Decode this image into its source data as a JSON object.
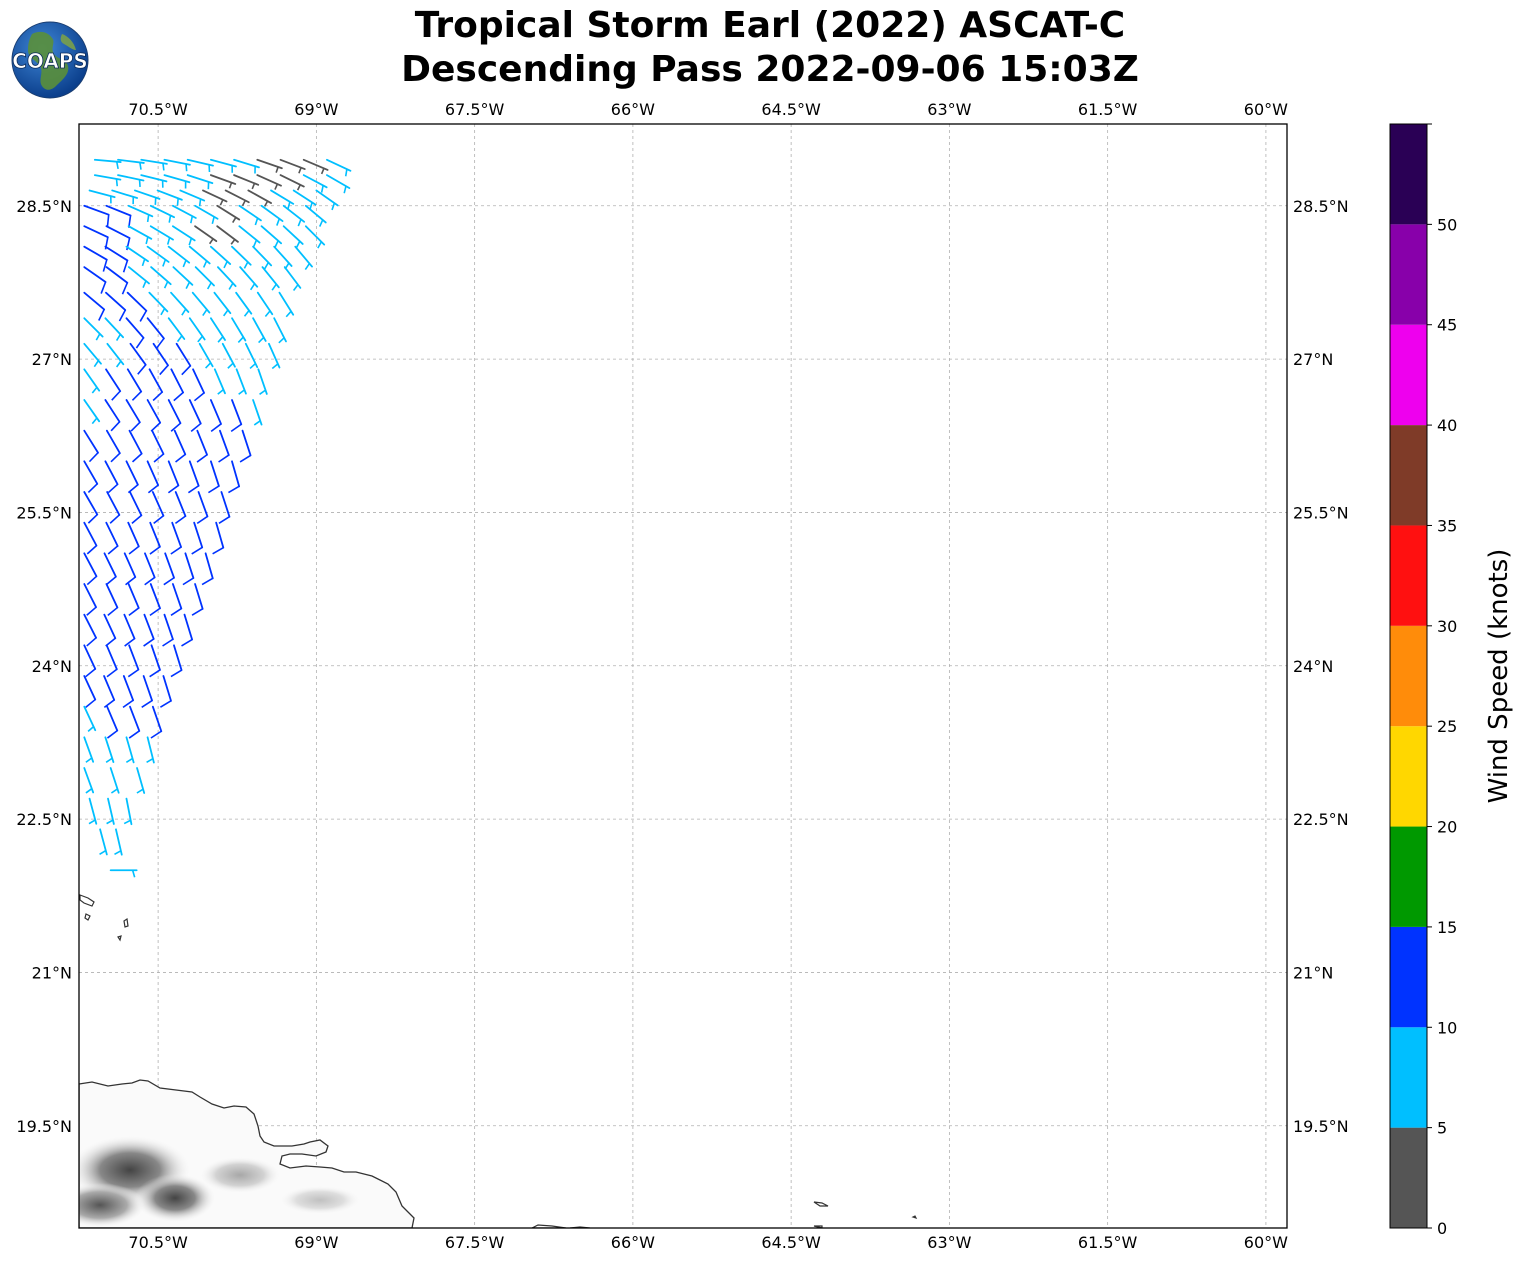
{
  "header": {
    "logo_text": "COAPS",
    "title_line1": "Tropical Storm Earl (2022) ASCAT-C",
    "title_line2": "Descending Pass 2022-09-06 15:03Z"
  },
  "map": {
    "lon_range": [
      -71.25,
      -59.8
    ],
    "lat_range": [
      18.5,
      29.3
    ],
    "lon_ticks": [
      {
        "value": -70.5,
        "label": "70.5°W"
      },
      {
        "value": -69,
        "label": "69°W"
      },
      {
        "value": -67.5,
        "label": "67.5°W"
      },
      {
        "value": -66,
        "label": "66°W"
      },
      {
        "value": -64.5,
        "label": "64.5°W"
      },
      {
        "value": -63,
        "label": "63°W"
      },
      {
        "value": -61.5,
        "label": "61.5°W"
      },
      {
        "value": -60,
        "label": "60°W"
      }
    ],
    "lat_ticks": [
      {
        "value": 28.5,
        "label": "28.5°N"
      },
      {
        "value": 27,
        "label": "27°N"
      },
      {
        "value": 25.5,
        "label": "25.5°N"
      },
      {
        "value": 24,
        "label": "24°N"
      },
      {
        "value": 22.5,
        "label": "22.5°N"
      },
      {
        "value": 21,
        "label": "21°N"
      },
      {
        "value": 19.5,
        "label": "19.5°N"
      }
    ],
    "gridlines": true,
    "land_labels_shown": false
  },
  "colorbar": {
    "label": "Wind Speed (knots)",
    "ticks": [
      "0",
      "5",
      "10",
      "15",
      "20",
      "25",
      "30",
      "35",
      "40",
      "45",
      "50"
    ],
    "bins": [
      {
        "min": 0,
        "max": 5,
        "color": "#555555"
      },
      {
        "min": 5,
        "max": 10,
        "color": "#00bfff"
      },
      {
        "min": 10,
        "max": 15,
        "color": "#0033ff"
      },
      {
        "min": 15,
        "max": 20,
        "color": "#009900"
      },
      {
        "min": 20,
        "max": 25,
        "color": "#ffd700"
      },
      {
        "min": 25,
        "max": 30,
        "color": "#ff8c0a"
      },
      {
        "min": 30,
        "max": 35,
        "color": "#ff1010"
      },
      {
        "min": 35,
        "max": 40,
        "color": "#7f3b28"
      },
      {
        "min": 40,
        "max": 45,
        "color": "#ee00ee"
      },
      {
        "min": 45,
        "max": 50,
        "color": "#8800aa"
      },
      {
        "min": 50,
        "max": 55,
        "color": "#2a0055"
      }
    ]
  },
  "wind_barbs": {
    "description_color_rule": "barb color indicates wind speed bin",
    "rows": [
      {
        "lat": 28.95,
        "lon_start": -71.1,
        "lon_end": -68.9,
        "n": 11,
        "speeds": [
          7,
          7,
          8,
          8,
          7,
          7,
          6,
          4,
          4,
          4,
          6
        ],
        "dir": 95
      },
      {
        "lat": 28.8,
        "lon_start": -71.1,
        "lon_end": -68.9,
        "n": 11,
        "speeds": [
          8,
          7,
          7,
          7,
          6,
          4,
          4,
          3,
          4,
          6,
          7
        ],
        "dir": 100
      },
      {
        "lat": 28.65,
        "lon_start": -71.15,
        "lon_end": -69.0,
        "n": 11,
        "speeds": [
          9,
          8,
          7,
          7,
          6,
          4,
          3,
          3,
          6,
          6,
          7
        ],
        "dir": 105
      },
      {
        "lat": 28.5,
        "lon_start": -71.2,
        "lon_end": -69.1,
        "n": 11,
        "speeds": [
          11,
          10,
          9,
          8,
          7,
          7,
          3,
          6,
          7,
          7,
          7
        ],
        "dir": 110
      },
      {
        "lat": 28.3,
        "lon_start": -71.2,
        "lon_end": -69.1,
        "n": 11,
        "speeds": [
          11,
          10,
          9,
          8,
          7,
          4,
          4,
          7,
          7,
          7,
          8
        ],
        "dir": 115
      },
      {
        "lat": 28.1,
        "lon_start": -71.2,
        "lon_end": -69.2,
        "n": 11,
        "speeds": [
          12,
          11,
          9,
          8,
          7,
          6,
          6,
          7,
          7,
          8,
          8
        ],
        "dir": 120
      },
      {
        "lat": 27.9,
        "lon_start": -71.2,
        "lon_end": -69.3,
        "n": 10,
        "speeds": [
          11,
          10,
          9,
          8,
          7,
          7,
          7,
          8,
          8,
          8
        ],
        "dir": 125
      },
      {
        "lat": 27.65,
        "lon_start": -71.2,
        "lon_end": -69.35,
        "n": 10,
        "speeds": [
          11,
          11,
          10,
          9,
          8,
          7,
          8,
          8,
          8,
          8
        ],
        "dir": 130
      },
      {
        "lat": 27.4,
        "lon_start": -71.2,
        "lon_end": -69.4,
        "n": 10,
        "speeds": [
          9,
          9,
          11,
          10,
          9,
          8,
          8,
          8,
          8,
          8
        ],
        "dir": 135
      },
      {
        "lat": 27.15,
        "lon_start": -71.2,
        "lon_end": -69.45,
        "n": 9,
        "speeds": [
          8,
          9,
          11,
          11,
          11,
          9,
          8,
          8,
          8
        ],
        "dir": 140
      },
      {
        "lat": 26.9,
        "lon_start": -71.2,
        "lon_end": -69.55,
        "n": 9,
        "speeds": [
          8,
          11,
          11,
          11,
          11,
          10,
          9,
          8,
          8
        ],
        "dir": 145
      },
      {
        "lat": 26.6,
        "lon_start": -71.2,
        "lon_end": -69.6,
        "n": 9,
        "speeds": [
          9,
          11,
          12,
          12,
          12,
          11,
          11,
          10,
          9
        ],
        "dir": 145
      },
      {
        "lat": 26.3,
        "lon_start": -71.2,
        "lon_end": -69.7,
        "n": 8,
        "speeds": [
          11,
          12,
          12,
          12,
          12,
          12,
          11,
          11
        ],
        "dir": 148
      },
      {
        "lat": 26.0,
        "lon_start": -71.2,
        "lon_end": -69.8,
        "n": 8,
        "speeds": [
          12,
          12,
          12,
          12,
          12,
          12,
          12,
          11
        ],
        "dir": 150
      },
      {
        "lat": 25.7,
        "lon_start": -71.2,
        "lon_end": -69.9,
        "n": 7,
        "speeds": [
          12,
          12,
          12,
          12,
          12,
          12,
          12
        ],
        "dir": 150
      },
      {
        "lat": 25.4,
        "lon_start": -71.2,
        "lon_end": -69.95,
        "n": 7,
        "speeds": [
          12,
          12,
          12,
          12,
          12,
          12,
          12
        ],
        "dir": 152
      },
      {
        "lat": 25.1,
        "lon_start": -71.2,
        "lon_end": -70.05,
        "n": 7,
        "speeds": [
          12,
          12,
          12,
          12,
          12,
          12,
          12
        ],
        "dir": 152
      },
      {
        "lat": 24.8,
        "lon_start": -71.2,
        "lon_end": -70.15,
        "n": 6,
        "speeds": [
          12,
          12,
          12,
          12,
          12,
          12
        ],
        "dir": 153
      },
      {
        "lat": 24.5,
        "lon_start": -71.2,
        "lon_end": -70.25,
        "n": 6,
        "speeds": [
          12,
          12,
          12,
          12,
          12,
          12
        ],
        "dir": 153
      },
      {
        "lat": 24.2,
        "lon_start": -71.2,
        "lon_end": -70.35,
        "n": 5,
        "speeds": [
          12,
          12,
          12,
          12,
          12
        ],
        "dir": 155
      },
      {
        "lat": 23.9,
        "lon_start": -71.2,
        "lon_end": -70.45,
        "n": 5,
        "speeds": [
          11,
          12,
          12,
          12,
          12
        ],
        "dir": 155
      },
      {
        "lat": 23.6,
        "lon_start": -71.2,
        "lon_end": -70.55,
        "n": 4,
        "speeds": [
          9,
          11,
          12,
          12
        ],
        "dir": 155
      },
      {
        "lat": 23.3,
        "lon_start": -71.2,
        "lon_end": -70.6,
        "n": 4,
        "speeds": [
          9,
          9,
          9,
          9
        ],
        "dir": 160
      },
      {
        "lat": 23.0,
        "lon_start": -71.2,
        "lon_end": -70.7,
        "n": 3,
        "speeds": [
          8,
          8,
          8
        ],
        "dir": 160
      },
      {
        "lat": 22.7,
        "lon_start": -71.15,
        "lon_end": -70.8,
        "n": 3,
        "speeds": [
          8,
          8,
          8
        ],
        "dir": 165
      },
      {
        "lat": 22.4,
        "lon_start": -71.05,
        "lon_end": -70.9,
        "n": 2,
        "speeds": [
          8,
          8
        ],
        "dir": 165
      },
      {
        "lat": 22.0,
        "lon_start": -70.95,
        "lon_end": -70.95,
        "n": 1,
        "speeds": [
          7
        ],
        "dir": 90
      }
    ]
  }
}
